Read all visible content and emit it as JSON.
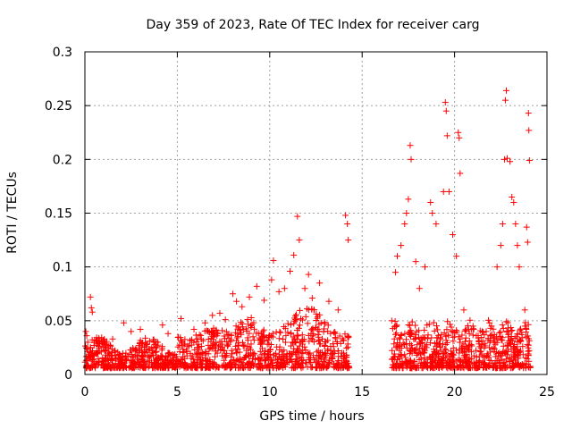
{
  "chart_data": {
    "type": "scatter",
    "title": "Day 359 of 2023, Rate Of TEC Index for receiver carg",
    "xlabel": "GPS time / hours",
    "ylabel": "ROTI / TECUs",
    "xlim": [
      0,
      25
    ],
    "ylim": [
      0,
      0.3
    ],
    "xticks": [
      0,
      5,
      10,
      15,
      20,
      25
    ],
    "xtick_labels": [
      "0",
      "5",
      "10",
      "15",
      "20",
      "25"
    ],
    "yticks": [
      0,
      0.05,
      0.1,
      0.15,
      0.2,
      0.25,
      0.3
    ],
    "ytick_labels": [
      "0",
      "0.05",
      "0.1",
      "0.15",
      "0.2",
      "0.25",
      "0.3"
    ],
    "grid": true,
    "marker": "+",
    "color": "#ff0000",
    "data_gap_hours": [
      14.3,
      16.6
    ],
    "series": [
      {
        "name": "ROTI",
        "points": [
          [
            0.05,
            0.04
          ],
          [
            0.1,
            0.036
          ],
          [
            0.15,
            0.03
          ],
          [
            0.3,
            0.072
          ],
          [
            0.35,
            0.062
          ],
          [
            0.4,
            0.058
          ],
          [
            0.5,
            0.027
          ],
          [
            1.0,
            0.025
          ],
          [
            1.5,
            0.033
          ],
          [
            2.1,
            0.048
          ],
          [
            2.5,
            0.04
          ],
          [
            3.0,
            0.042
          ],
          [
            3.5,
            0.031
          ],
          [
            4.2,
            0.046
          ],
          [
            4.5,
            0.038
          ],
          [
            5.2,
            0.052
          ],
          [
            5.9,
            0.042
          ],
          [
            6.5,
            0.048
          ],
          [
            6.9,
            0.055
          ],
          [
            7.3,
            0.057
          ],
          [
            7.6,
            0.051
          ],
          [
            8.0,
            0.075
          ],
          [
            8.2,
            0.068
          ],
          [
            8.5,
            0.063
          ],
          [
            8.9,
            0.072
          ],
          [
            9.3,
            0.082
          ],
          [
            9.7,
            0.069
          ],
          [
            10.1,
            0.088
          ],
          [
            10.2,
            0.106
          ],
          [
            10.5,
            0.077
          ],
          [
            10.8,
            0.08
          ],
          [
            11.1,
            0.096
          ],
          [
            11.3,
            0.111
          ],
          [
            11.5,
            0.147
          ],
          [
            11.6,
            0.125
          ],
          [
            11.9,
            0.08
          ],
          [
            12.1,
            0.093
          ],
          [
            12.3,
            0.071
          ],
          [
            12.7,
            0.085
          ],
          [
            13.2,
            0.068
          ],
          [
            13.7,
            0.06
          ],
          [
            14.1,
            0.148
          ],
          [
            14.2,
            0.14
          ],
          [
            14.25,
            0.125
          ],
          [
            16.6,
            0.05
          ],
          [
            16.8,
            0.095
          ],
          [
            16.9,
            0.11
          ],
          [
            17.1,
            0.12
          ],
          [
            17.3,
            0.14
          ],
          [
            17.4,
            0.15
          ],
          [
            17.5,
            0.163
          ],
          [
            17.6,
            0.213
          ],
          [
            17.65,
            0.2
          ],
          [
            17.9,
            0.105
          ],
          [
            18.1,
            0.08
          ],
          [
            18.4,
            0.1
          ],
          [
            18.7,
            0.16
          ],
          [
            18.8,
            0.15
          ],
          [
            19.0,
            0.14
          ],
          [
            19.4,
            0.17
          ],
          [
            19.5,
            0.253
          ],
          [
            19.55,
            0.245
          ],
          [
            19.6,
            0.222
          ],
          [
            19.7,
            0.17
          ],
          [
            19.9,
            0.13
          ],
          [
            20.1,
            0.11
          ],
          [
            20.2,
            0.225
          ],
          [
            20.25,
            0.22
          ],
          [
            20.3,
            0.187
          ],
          [
            20.5,
            0.06
          ],
          [
            21.0,
            0.045
          ],
          [
            21.5,
            0.04
          ],
          [
            22.0,
            0.045
          ],
          [
            22.3,
            0.1
          ],
          [
            22.5,
            0.12
          ],
          [
            22.6,
            0.14
          ],
          [
            22.7,
            0.2
          ],
          [
            22.75,
            0.255
          ],
          [
            22.8,
            0.264
          ],
          [
            22.85,
            0.201
          ],
          [
            23.0,
            0.198
          ],
          [
            23.1,
            0.165
          ],
          [
            23.2,
            0.16
          ],
          [
            23.3,
            0.14
          ],
          [
            23.4,
            0.12
          ],
          [
            23.5,
            0.1
          ],
          [
            23.8,
            0.06
          ],
          [
            23.9,
            0.137
          ],
          [
            23.95,
            0.123
          ],
          [
            24.0,
            0.243
          ],
          [
            24.02,
            0.227
          ],
          [
            24.05,
            0.199
          ]
        ]
      }
    ]
  }
}
